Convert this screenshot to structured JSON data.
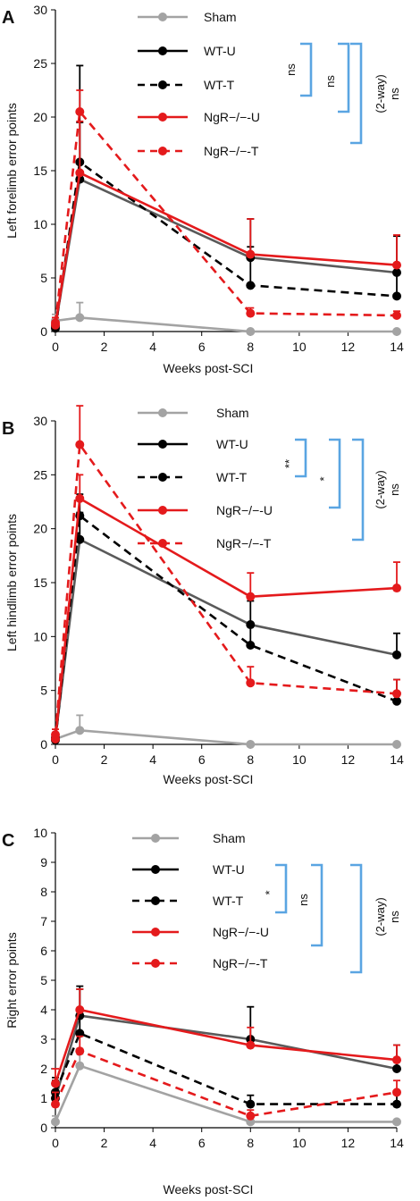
{
  "chart_data": [
    {
      "type": "line",
      "panel": "A",
      "xlabel": "Weeks post-SCI",
      "ylabel": "Left forelimb error points",
      "xlim": [
        0,
        14
      ],
      "ylim": [
        0,
        30
      ],
      "xticks": [
        0,
        2,
        4,
        6,
        8,
        10,
        12,
        14
      ],
      "yticks": [
        0,
        5,
        10,
        15,
        20,
        25,
        30
      ],
      "x": [
        0,
        1,
        8,
        14
      ],
      "series": [
        {
          "name": "Sham",
          "key": "sham",
          "values": [
            1.0,
            1.3,
            0.0,
            0.0
          ],
          "err": [
            0.6,
            1.4,
            0,
            0
          ]
        },
        {
          "name": "WT-U",
          "key": "wtu",
          "values": [
            0.5,
            14.2,
            6.9,
            5.5
          ],
          "err": [
            0.4,
            5.3,
            3.6,
            3.4
          ]
        },
        {
          "name": "WT-T",
          "key": "wtt",
          "values": [
            0.3,
            15.8,
            4.3,
            3.3
          ],
          "err": [
            0.3,
            9.0,
            3.6,
            2.9
          ]
        },
        {
          "name": "NgR−/−-U",
          "key": "ngru",
          "values": [
            0.6,
            14.8,
            7.2,
            6.2
          ],
          "err": [
            0.4,
            4.8,
            3.3,
            2.8
          ]
        },
        {
          "name": "NgR−/−-T",
          "key": "ngrt",
          "values": [
            0.8,
            20.5,
            1.7,
            1.5
          ],
          "err": [
            0.5,
            2.0,
            0.5,
            0.4
          ]
        }
      ],
      "brackets": [
        {
          "label": "ns"
        },
        {
          "label": "ns"
        },
        {
          "label": "ns",
          "sub": "(2-way)"
        }
      ]
    },
    {
      "type": "line",
      "panel": "B",
      "xlabel": "Weeks post-SCI",
      "ylabel": "Left hindlimb error points",
      "xlim": [
        0,
        14
      ],
      "ylim": [
        0,
        30
      ],
      "xticks": [
        0,
        2,
        4,
        6,
        8,
        10,
        12,
        14
      ],
      "yticks": [
        0,
        5,
        10,
        15,
        20,
        25,
        30
      ],
      "x": [
        0,
        1,
        8,
        14
      ],
      "series": [
        {
          "name": "Sham",
          "key": "sham",
          "values": [
            0.5,
            1.3,
            0.0,
            0.0
          ],
          "err": [
            0.4,
            1.4,
            0,
            0
          ]
        },
        {
          "name": "WT-U",
          "key": "wtu",
          "values": [
            0.6,
            19.0,
            11.1,
            8.3
          ],
          "err": [
            0.4,
            2.5,
            2.2,
            2.0
          ]
        },
        {
          "name": "WT-T",
          "key": "wtt",
          "values": [
            0.4,
            21.2,
            9.2,
            4.0
          ],
          "err": [
            0.3,
            2.0,
            2.0,
            2.0
          ]
        },
        {
          "name": "NgR−/−-U",
          "key": "ngru",
          "values": [
            0.5,
            22.8,
            13.7,
            14.5
          ],
          "err": [
            0.4,
            2.2,
            2.2,
            2.4
          ]
        },
        {
          "name": "NgR−/−-T",
          "key": "ngrt",
          "values": [
            0.9,
            27.8,
            5.7,
            4.7
          ],
          "err": [
            0.5,
            3.6,
            1.5,
            1.3
          ]
        }
      ],
      "brackets": [
        {
          "label": "**"
        },
        {
          "label": "*"
        },
        {
          "label": "ns",
          "sub": "(2-way)"
        }
      ]
    },
    {
      "type": "line",
      "panel": "C",
      "xlabel": "Weeks post-SCI",
      "ylabel": "Right error points",
      "xlim": [
        0,
        14
      ],
      "ylim": [
        0,
        10
      ],
      "xticks": [
        0,
        2,
        4,
        6,
        8,
        10,
        12,
        14
      ],
      "yticks": [
        0,
        1,
        2,
        3,
        4,
        5,
        6,
        7,
        8,
        9,
        10
      ],
      "x": [
        0,
        1,
        8,
        14
      ],
      "series": [
        {
          "name": "Sham",
          "key": "sham",
          "values": [
            0.2,
            2.1,
            0.2,
            0.2
          ],
          "err": [
            0.2,
            0.4,
            0,
            0
          ]
        },
        {
          "name": "WT-U",
          "key": "wtu",
          "values": [
            1.0,
            3.8,
            3.0,
            2.0
          ],
          "err": [
            0.6,
            0.9,
            1.1,
            0.8
          ]
        },
        {
          "name": "WT-T",
          "key": "wtt",
          "values": [
            1.2,
            3.2,
            0.8,
            0.8
          ],
          "err": [
            0.5,
            1.6,
            0.3,
            0.4
          ]
        },
        {
          "name": "NgR−/−-U",
          "key": "ngru",
          "values": [
            1.5,
            4.0,
            2.8,
            2.3
          ],
          "err": [
            0.5,
            0.7,
            0.6,
            0.5
          ]
        },
        {
          "name": "NgR−/−-T",
          "key": "ngrt",
          "values": [
            0.8,
            2.6,
            0.4,
            1.2
          ],
          "err": [
            0.4,
            0.5,
            0.2,
            0.4
          ]
        }
      ],
      "brackets": [
        {
          "label": "*"
        },
        {
          "label": "ns"
        },
        {
          "label": "ns",
          "sub": "(2-way)"
        }
      ]
    }
  ],
  "colors": {
    "sham": "#a3a3a3",
    "wt_line": "#5a5a5a",
    "wt_marker": "#000000",
    "ngr": "#e41a1c",
    "bracket": "#5aa5e2"
  }
}
